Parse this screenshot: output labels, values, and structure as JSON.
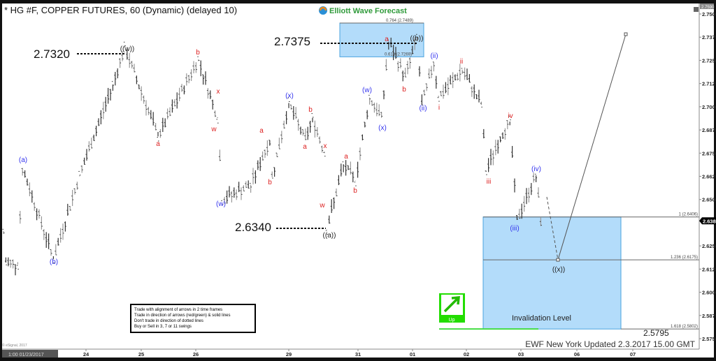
{
  "header": {
    "title": "* HG #F, COPPER FUTURES, 60 (Dynamic) (delayed 10)",
    "logo_text": "Elliott Wave Forecast"
  },
  "footer": {
    "updated": "EWF New York Updated 2.3.2017 15.00 GMT",
    "copyright": "© eSignal, 2017",
    "cursor_time": "1:00 01/23/2017"
  },
  "rules_box": {
    "lines": [
      "Trade with alignment of arrows in 2 time frames",
      "Trade in direction of arrows (red/green) & solid lines",
      "Don't trade in direction of dotted lines",
      "Buy or Sell in 3, 7 or 11 swings"
    ]
  },
  "direction_badge": {
    "label": "Up",
    "color": "#22dd00"
  },
  "colors": {
    "wave_blue": "#3333ee",
    "wave_red": "#dd2222",
    "zone_fill": "#b3dcfa",
    "zone_border": "#4aa3df",
    "bar": "#333333",
    "invalidation": "#44dd44"
  },
  "chart_data": {
    "type": "line",
    "ylim": [
      2.57,
      2.759
    ],
    "y_ticks": [
      "2.7500",
      "2.7375",
      "2.7250",
      "2.7125",
      "2.7000",
      "2.6875",
      "2.6750",
      "2.6625",
      "2.6500",
      "2.6250",
      "2.6125",
      "2.6000",
      "2.5875",
      "2.5750"
    ],
    "y_top_label": "2.7590",
    "last_price": "2.6385",
    "x_ticks": [
      "24",
      "25",
      "26",
      "29",
      "31",
      "01",
      "02",
      "03",
      "06",
      "07"
    ],
    "price_pivots_hourly_bar_price": [
      [
        0,
        2.633
      ],
      [
        1,
        2.616
      ],
      [
        6,
        2.615
      ],
      [
        8,
        2.667
      ],
      [
        21,
        2.618
      ],
      [
        32,
        2.663
      ],
      [
        46,
        2.712
      ],
      [
        51,
        2.732
      ],
      [
        65,
        2.684
      ],
      [
        82,
        2.7255
      ],
      [
        90,
        2.694
      ],
      [
        92,
        2.65
      ],
      [
        104,
        2.658
      ],
      [
        112,
        2.682
      ],
      [
        113,
        2.662
      ],
      [
        120,
        2.702
      ],
      [
        127,
        2.682
      ],
      [
        130,
        2.694
      ],
      [
        135,
        2.675
      ],
      [
        136,
        2.634
      ],
      [
        143,
        2.669
      ],
      [
        148,
        2.66
      ],
      [
        154,
        2.705
      ],
      [
        159,
        2.694
      ],
      [
        162,
        2.735
      ],
      [
        169,
        2.716
      ],
      [
        174,
        2.7375
      ],
      [
        176,
        2.701
      ],
      [
        181,
        2.724
      ],
      [
        183,
        2.705
      ],
      [
        193,
        2.72
      ],
      [
        201,
        2.701
      ],
      [
        203,
        2.665
      ],
      [
        209,
        2.684
      ],
      [
        213,
        2.692
      ],
      [
        216,
        2.639
      ],
      [
        224,
        2.663
      ],
      [
        226,
        2.6385
      ]
    ],
    "price_callouts": [
      "2.7320",
      "2.7375",
      "2.6340",
      "2.5795"
    ],
    "fib_levels": [
      {
        "label": "0.764 (2.7489)",
        "price": 2.7489
      },
      {
        "label": "0.618 (2.7269)",
        "price": 2.7269
      },
      {
        "label": "1 (2.6406)",
        "price": 2.6406
      },
      {
        "label": "1.236 (2.6175)",
        "price": 2.6175
      },
      {
        "label": "1.618 (2.5802)",
        "price": 2.5802
      }
    ],
    "zone_label": "Invalidation Level",
    "projection": {
      "target_label": "((x))",
      "target_price": 2.6175
    },
    "wave_labels": [
      {
        "text": "(a)",
        "color": "blue"
      },
      {
        "text": "(b)",
        "color": "blue"
      },
      {
        "text": "((w))",
        "color": "black"
      },
      {
        "text": "a",
        "color": "red"
      },
      {
        "text": "b",
        "color": "red"
      },
      {
        "text": "x",
        "color": "red"
      },
      {
        "text": "w",
        "color": "red"
      },
      {
        "text": "(w)",
        "color": "blue"
      },
      {
        "text": "a",
        "color": "red"
      },
      {
        "text": "b",
        "color": "red"
      },
      {
        "text": "(x)",
        "color": "blue"
      },
      {
        "text": "a",
        "color": "red"
      },
      {
        "text": "b",
        "color": "red"
      },
      {
        "text": "x",
        "color": "red"
      },
      {
        "text": "w",
        "color": "red"
      },
      {
        "text": "((a))",
        "color": "black"
      },
      {
        "text": "a",
        "color": "red"
      },
      {
        "text": "b",
        "color": "red"
      },
      {
        "text": "(w)",
        "color": "blue"
      },
      {
        "text": "(x)",
        "color": "blue"
      },
      {
        "text": "a",
        "color": "red"
      },
      {
        "text": "b",
        "color": "red"
      },
      {
        "text": "((b))",
        "color": "black"
      },
      {
        "text": "(ii)",
        "color": "blue"
      },
      {
        "text": "(ii)",
        "color": "blue"
      },
      {
        "text": "i",
        "color": "red"
      },
      {
        "text": "ii",
        "color": "red"
      },
      {
        "text": "iii",
        "color": "red"
      },
      {
        "text": "iv",
        "color": "red"
      },
      {
        "text": "(iii)",
        "color": "blue"
      },
      {
        "text": "(iv)",
        "color": "blue"
      }
    ]
  }
}
